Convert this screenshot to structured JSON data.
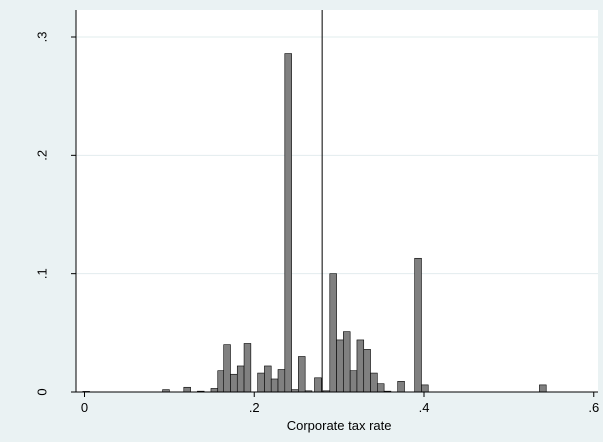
{
  "chart_data": {
    "type": "bar",
    "title": "",
    "xlabel": "Corporate tax rate",
    "ylabel": "",
    "xlim": [
      -0.01,
      0.605
    ],
    "ylim": [
      0,
      0.3
    ],
    "x_ticks": [
      {
        "value": 0,
        "label": "0"
      },
      {
        "value": 0.2,
        "label": ".2"
      },
      {
        "value": 0.4,
        "label": ".4"
      },
      {
        "value": 0.6,
        "label": ".6"
      }
    ],
    "y_ticks": [
      {
        "value": 0,
        "label": "0"
      },
      {
        "value": 0.1,
        "label": ".1"
      },
      {
        "value": 0.2,
        "label": ".2"
      },
      {
        "value": 0.3,
        "label": ".3"
      }
    ],
    "grid": true,
    "bin_width": 0.008,
    "reference_line_x": 0.28,
    "bars_color": "#808080",
    "bars": [
      {
        "x": 0.002,
        "y": 0.0005
      },
      {
        "x": 0.096,
        "y": 0.002
      },
      {
        "x": 0.121,
        "y": 0.004
      },
      {
        "x": 0.137,
        "y": 0.0007
      },
      {
        "x": 0.153,
        "y": 0.003
      },
      {
        "x": 0.161,
        "y": 0.018
      },
      {
        "x": 0.168,
        "y": 0.04
      },
      {
        "x": 0.176,
        "y": 0.015
      },
      {
        "x": 0.184,
        "y": 0.022
      },
      {
        "x": 0.192,
        "y": 0.041
      },
      {
        "x": 0.208,
        "y": 0.016
      },
      {
        "x": 0.216,
        "y": 0.022
      },
      {
        "x": 0.224,
        "y": 0.011
      },
      {
        "x": 0.232,
        "y": 0.019
      },
      {
        "x": 0.24,
        "y": 0.286
      },
      {
        "x": 0.248,
        "y": 0.002
      },
      {
        "x": 0.256,
        "y": 0.03
      },
      {
        "x": 0.264,
        "y": 0.001
      },
      {
        "x": 0.275,
        "y": 0.012
      },
      {
        "x": 0.285,
        "y": 0.001
      },
      {
        "x": 0.293,
        "y": 0.1
      },
      {
        "x": 0.301,
        "y": 0.044
      },
      {
        "x": 0.309,
        "y": 0.051
      },
      {
        "x": 0.317,
        "y": 0.018
      },
      {
        "x": 0.325,
        "y": 0.044
      },
      {
        "x": 0.333,
        "y": 0.036
      },
      {
        "x": 0.341,
        "y": 0.016
      },
      {
        "x": 0.349,
        "y": 0.007
      },
      {
        "x": 0.357,
        "y": 0.0007
      },
      {
        "x": 0.373,
        "y": 0.009
      },
      {
        "x": 0.393,
        "y": 0.113
      },
      {
        "x": 0.401,
        "y": 0.006
      },
      {
        "x": 0.54,
        "y": 0.006
      }
    ]
  },
  "style": {
    "background": "#eaf2f3",
    "plot_background": "#ffffff",
    "grid_color": "#e2ecee",
    "bar_stroke": "#000000",
    "axis_color": "#000000"
  }
}
